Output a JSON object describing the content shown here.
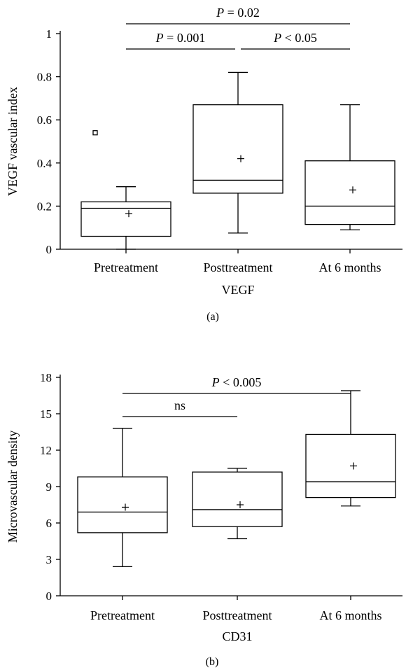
{
  "chart_data": [
    {
      "type": "box",
      "panel_label": "(a)",
      "xlabel": "VEGF",
      "ylabel": "VEGF vascular index",
      "ylim": [
        0,
        1
      ],
      "yticks": [
        0,
        0.2,
        0.4,
        0.6,
        0.8,
        1
      ],
      "ytick_labels": [
        "0",
        "0.2",
        "0.4",
        "0.6",
        "0.8",
        "1"
      ],
      "categories": [
        "Pretreatment",
        "Posttreatment",
        "At 6 months"
      ],
      "boxes": [
        {
          "whisker_low": 0.0,
          "q1": 0.06,
          "median": 0.19,
          "q3": 0.22,
          "whisker_high": 0.29,
          "mean": 0.165,
          "outliers": [
            0.54
          ]
        },
        {
          "whisker_low": 0.075,
          "q1": 0.26,
          "median": 0.32,
          "q3": 0.67,
          "whisker_high": 0.82,
          "mean": 0.42,
          "outliers": []
        },
        {
          "whisker_low": 0.09,
          "q1": 0.115,
          "median": 0.2,
          "q3": 0.41,
          "whisker_high": 0.67,
          "mean": 0.275,
          "outliers": []
        }
      ],
      "comparisons": [
        {
          "from": 0,
          "to": 2,
          "label_parts": [
            "P",
            " = 0.02"
          ],
          "row": 2
        },
        {
          "from": 0,
          "to": 1,
          "label_parts": [
            "P",
            " = 0.001"
          ],
          "row": 1
        },
        {
          "from": 1,
          "to": 2,
          "label_parts": [
            "P",
            " < 0.05"
          ],
          "row": 1
        }
      ]
    },
    {
      "type": "box",
      "panel_label": "(b)",
      "xlabel": "CD31",
      "ylabel": "Microvascular density",
      "ylim": [
        0,
        18
      ],
      "yticks": [
        0,
        3,
        6,
        9,
        12,
        15,
        18
      ],
      "ytick_labels": [
        "0",
        "3",
        "6",
        "9",
        "12",
        "15",
        "18"
      ],
      "categories": [
        "Pretreatment",
        "Posttreatment",
        "At 6 months"
      ],
      "boxes": [
        {
          "whisker_low": 2.4,
          "q1": 5.2,
          "median": 6.9,
          "q3": 9.8,
          "whisker_high": 13.8,
          "mean": 7.3,
          "outliers": []
        },
        {
          "whisker_low": 4.7,
          "q1": 5.7,
          "median": 7.1,
          "q3": 10.2,
          "whisker_high": 10.5,
          "mean": 7.5,
          "outliers": []
        },
        {
          "whisker_low": 7.4,
          "q1": 8.1,
          "median": 9.4,
          "q3": 13.3,
          "whisker_high": 16.9,
          "mean": 10.7,
          "outliers": []
        }
      ],
      "comparisons": [
        {
          "from": 0,
          "to": 2,
          "label_parts": [
            "P",
            " < 0.005"
          ],
          "row": 2
        },
        {
          "from": 0,
          "to": 1,
          "label_parts": [
            "",
            "ns"
          ],
          "row": 1
        }
      ]
    }
  ]
}
